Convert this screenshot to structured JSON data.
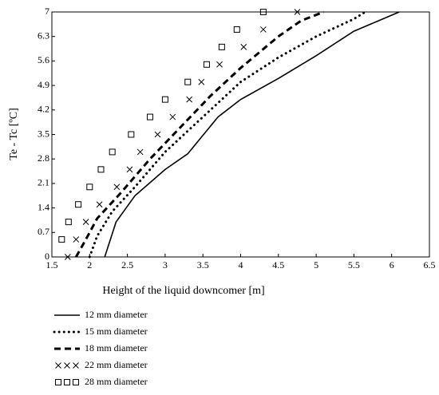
{
  "chart_data": {
    "type": "line",
    "xlabel": "Height of the liquid downcomer [m]",
    "ylabel": "Te - Tc [ºC]",
    "xlim": [
      1.5,
      6.5
    ],
    "xticks": [
      1.5,
      2,
      2.5,
      3,
      3.5,
      4,
      4.5,
      5,
      5.5,
      6,
      6.5
    ],
    "ylim": [
      0,
      7
    ],
    "yticks": [
      0,
      0.7,
      1.4,
      2.1,
      2.8,
      3.5,
      4.2,
      4.9,
      5.6,
      6.3,
      7
    ],
    "series": [
      {
        "name": "12 mm diameter",
        "color": "#000000",
        "style": "solid",
        "x": [
          2.2,
          2.35,
          2.6,
          3.0,
          3.3,
          3.7,
          4.0,
          4.5,
          5.0,
          5.5,
          6.1
        ],
        "values": [
          0,
          1.0,
          1.75,
          2.5,
          2.95,
          4.0,
          4.5,
          5.1,
          5.75,
          6.45,
          7
        ]
      },
      {
        "name": "15 mm diameter",
        "color": "#000000",
        "style": "dotted",
        "x": [
          2.0,
          2.1,
          2.3,
          2.6,
          3.0,
          3.5,
          4.0,
          4.5,
          5.0,
          5.5,
          5.65
        ],
        "values": [
          0,
          0.6,
          1.3,
          2.0,
          3.0,
          4.0,
          5.0,
          5.7,
          6.3,
          6.8,
          7
        ]
      },
      {
        "name": "18 mm diameter",
        "color": "#000000",
        "style": "dashed",
        "x": [
          1.82,
          1.95,
          2.1,
          2.4,
          2.8,
          3.2,
          3.6,
          4.0,
          4.5,
          4.8,
          5.1
        ],
        "values": [
          0,
          0.5,
          1.1,
          1.8,
          2.8,
          3.7,
          4.6,
          5.4,
          6.3,
          6.75,
          7
        ]
      },
      {
        "name": "22 mm diameter",
        "color": "#000000",
        "style": "cross",
        "x": [
          1.71,
          1.82,
          1.95,
          2.13,
          2.36,
          2.53,
          2.67,
          2.9,
          3.1,
          3.32,
          3.48,
          3.72,
          4.04,
          4.3,
          4.75
        ],
        "values": [
          0,
          0.5,
          1.0,
          1.5,
          2.0,
          2.5,
          3.0,
          3.5,
          4.0,
          4.5,
          5.0,
          5.5,
          6.0,
          6.5,
          7.0
        ]
      },
      {
        "name": "28 mm diameter",
        "color": "#000000",
        "style": "square",
        "x": [
          1.63,
          1.72,
          1.85,
          2.0,
          2.15,
          2.3,
          2.55,
          2.8,
          3.0,
          3.3,
          3.55,
          3.75,
          3.95,
          4.3
        ],
        "values": [
          0.5,
          1.0,
          1.5,
          2.0,
          2.5,
          3.0,
          3.5,
          4.0,
          4.5,
          5.0,
          5.5,
          6.0,
          6.5,
          7.0
        ]
      }
    ]
  }
}
